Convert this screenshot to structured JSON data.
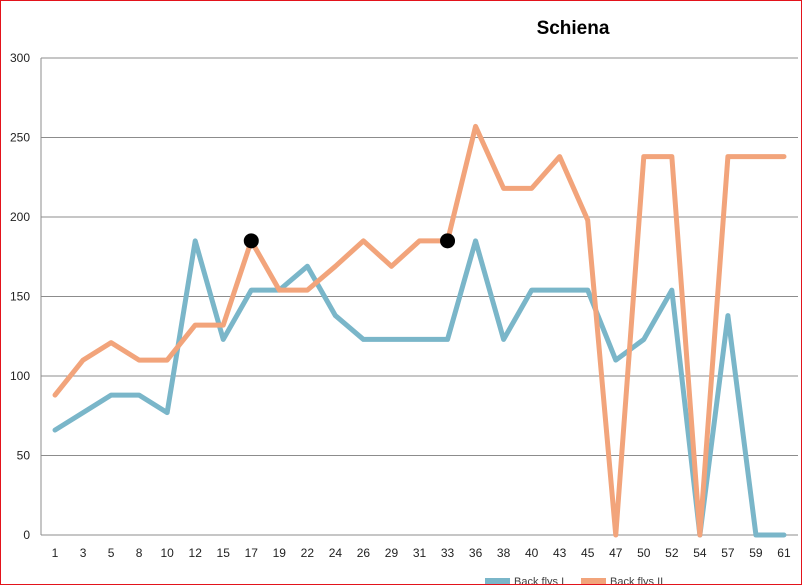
{
  "chart_data": {
    "type": "line",
    "title": "Schiena",
    "xlabel": "",
    "ylabel": "",
    "ylim": [
      0,
      300
    ],
    "yticks": [
      "0",
      "50",
      "100",
      "150",
      "200",
      "250",
      "300"
    ],
    "grid": true,
    "legend_position": "bottom",
    "categories": [
      "1",
      "3",
      "5",
      "8",
      "10",
      "12",
      "15",
      "17",
      "19",
      "22",
      "24",
      "26",
      "29",
      "31",
      "33",
      "36",
      "38",
      "40",
      "43",
      "45",
      "47",
      "50",
      "52",
      "54",
      "57",
      "59",
      "61"
    ],
    "series": [
      {
        "name": "Back flys I",
        "color": "#7ab6c9",
        "values": [
          66,
          77,
          88,
          88,
          77,
          185,
          123,
          154,
          154,
          169,
          138,
          123,
          123,
          123,
          123,
          185,
          123,
          154,
          154,
          154,
          110,
          123,
          154,
          0,
          138,
          0,
          0
        ]
      },
      {
        "name": "Back flys II",
        "color": "#f2a47b",
        "values": [
          88,
          110,
          121,
          110,
          110,
          132,
          132,
          185,
          154,
          154,
          169,
          185,
          169,
          185,
          185,
          257,
          218,
          218,
          238,
          198,
          0,
          238,
          238,
          0,
          238,
          238,
          238
        ]
      }
    ],
    "markers": [
      {
        "category": "17",
        "value": 185,
        "color": "#000000"
      },
      {
        "category": "33",
        "value": 185,
        "color": "#000000"
      }
    ]
  }
}
